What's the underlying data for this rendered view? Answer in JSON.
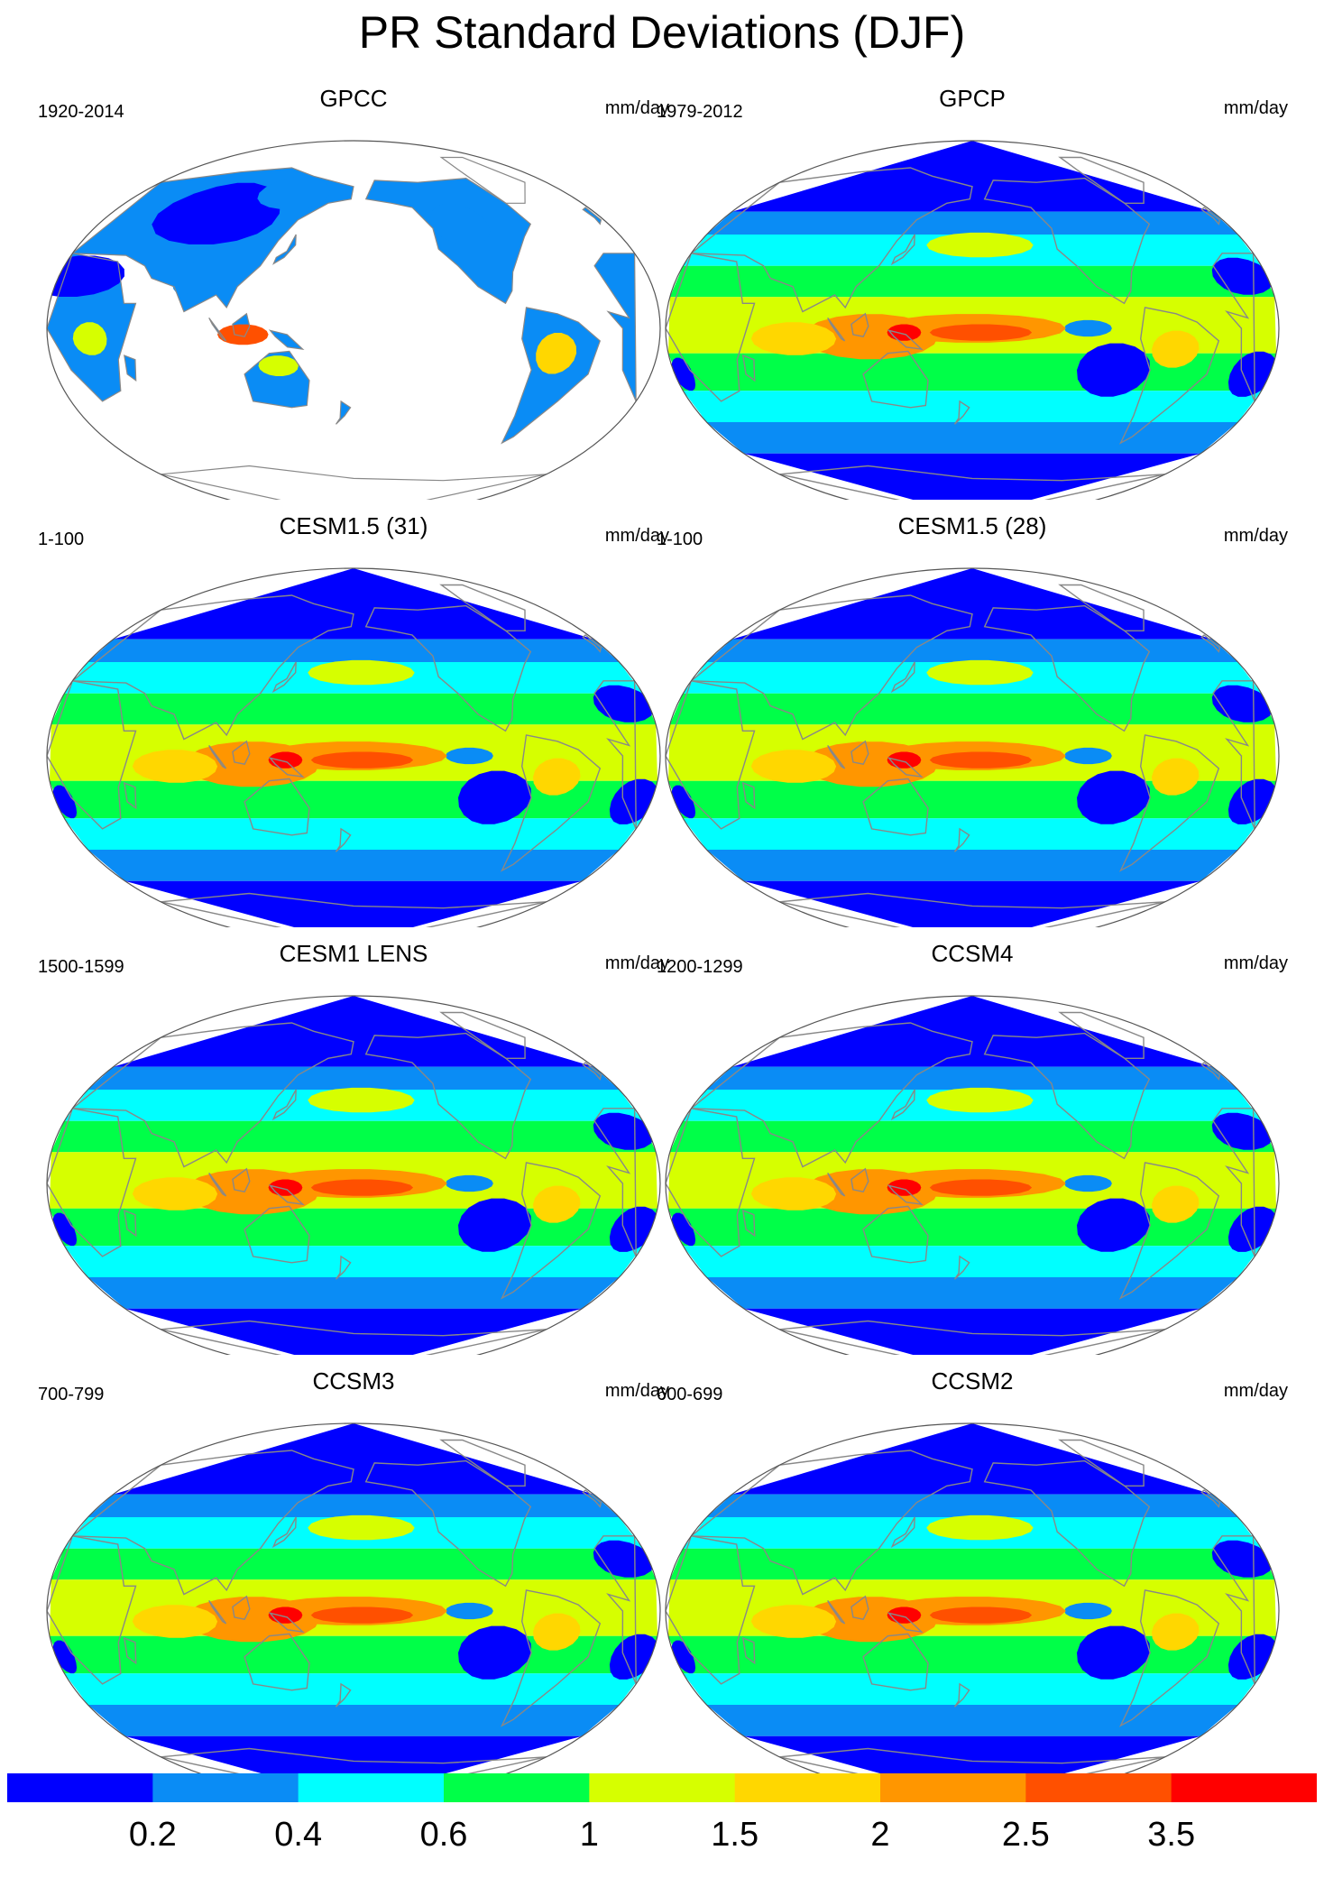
{
  "title": "PR Standard Deviations (DJF)",
  "panels": [
    {
      "title": "GPCC",
      "period": "1920-2014",
      "units": "mm/day",
      "land_only": true
    },
    {
      "title": "GPCP",
      "period": "1979-2012",
      "units": "mm/day",
      "land_only": false
    },
    {
      "title": "CESM1.5 (31)",
      "period": "1-100",
      "units": "mm/day",
      "land_only": false
    },
    {
      "title": "CESM1.5 (28)",
      "period": "1-100",
      "units": "mm/day",
      "land_only": false
    },
    {
      "title": "CESM1 LENS",
      "period": "1500-1599",
      "units": "mm/day",
      "land_only": false
    },
    {
      "title": "CCSM4",
      "period": "1200-1299",
      "units": "mm/day",
      "land_only": false
    },
    {
      "title": "CCSM3",
      "period": "700-799",
      "units": "mm/day",
      "land_only": false
    },
    {
      "title": "CCSM2",
      "period": "600-699",
      "units": "mm/day",
      "land_only": false
    }
  ],
  "colorbar": {
    "labels": [
      "0.2",
      "0.4",
      "0.6",
      "1",
      "1.5",
      "2",
      "2.5",
      "3.5"
    ],
    "colors": [
      "#0000ff",
      "#0a8cf5",
      "#00ffff",
      "#00ff48",
      "#d6ff00",
      "#ffd700",
      "#ff9600",
      "#ff5000",
      "#ff0000"
    ]
  },
  "map_colors": {
    "coast": "#888888",
    "outline": "#555555",
    "land_only_background": "#ffffff"
  }
}
